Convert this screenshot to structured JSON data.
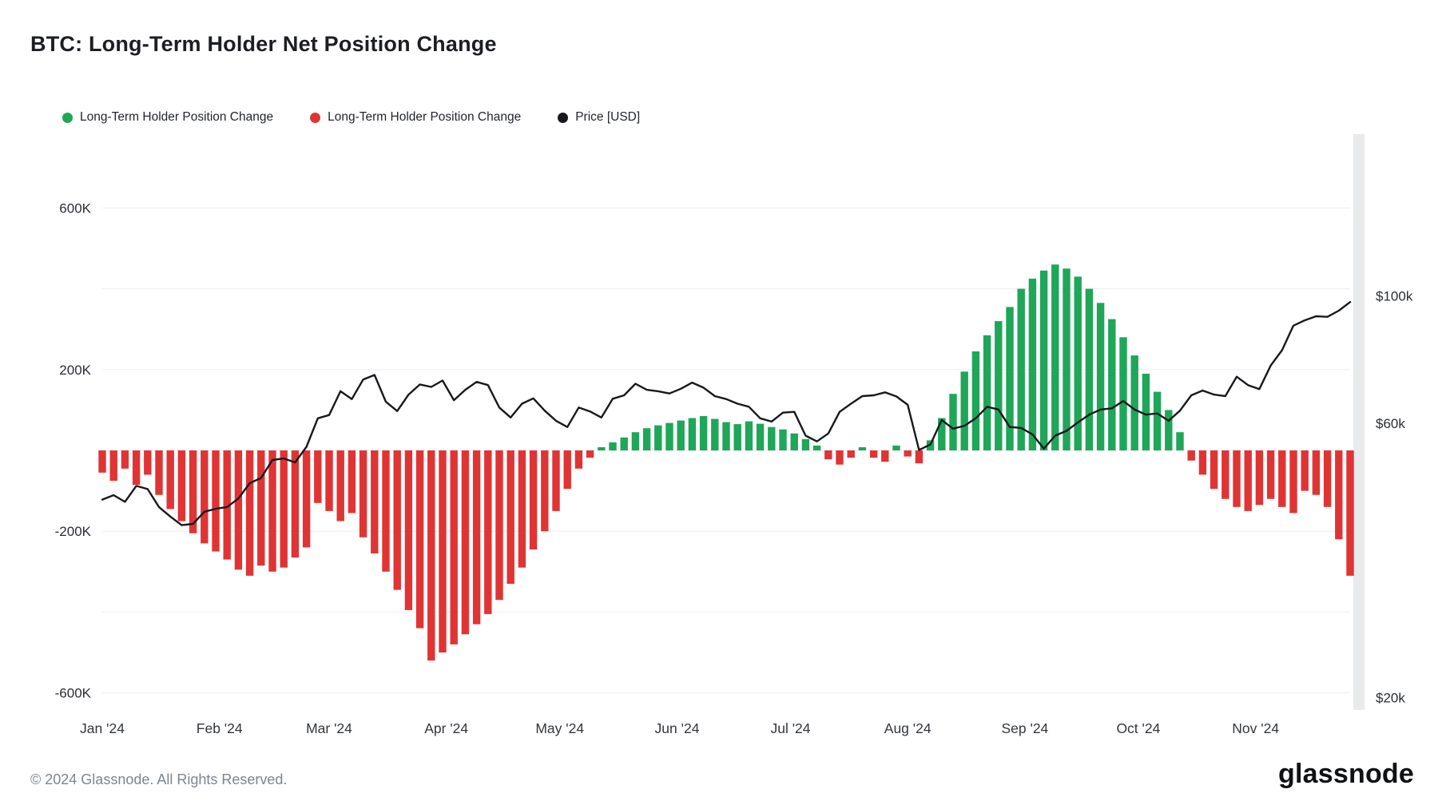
{
  "page": {
    "title": "BTC: Long-Term Holder Net Position Change",
    "footer": "© 2024 Glassnode. All Rights Reserved.",
    "brand": "glassnode"
  },
  "colors": {
    "positive": "#1fa658",
    "negative": "#e03434",
    "price": "#17191c",
    "grid": "#ededf1",
    "axis_strip": "#e9eaec",
    "axis_text": "#2a2d33",
    "muted_text": "#7e858e"
  },
  "legend": [
    {
      "label": "Long-Term Holder Position Change",
      "color_key": "positive"
    },
    {
      "label": "Long-Term Holder Position Change",
      "color_key": "negative"
    },
    {
      "label": "Price [USD]",
      "color_key": "price"
    }
  ],
  "chart_data": {
    "type": "combo-bar-line",
    "title": "BTC: Long-Term Holder Net Position Change",
    "legend_position": "top-left",
    "grid": "horizontal-only",
    "x_start_date": "2024-01-01",
    "x_interval_days": 3,
    "x_total_days": 330,
    "series": [
      {
        "name": "Long-Term Holder Position Change",
        "type": "bar",
        "axis": "left",
        "values_key": "net_position_change_k",
        "positive_color_key": "positive",
        "negative_color_key": "negative"
      },
      {
        "name": "Price [USD]",
        "type": "line",
        "axis": "right",
        "values_key": "price_usd_k",
        "color_key": "price"
      }
    ],
    "net_position_change_k": [
      -55,
      -75,
      -45,
      -85,
      -60,
      -110,
      -145,
      -175,
      -205,
      -230,
      -250,
      -270,
      -295,
      -310,
      -285,
      -300,
      -290,
      -265,
      -240,
      -130,
      -150,
      -175,
      -155,
      -215,
      -255,
      -300,
      -345,
      -395,
      -440,
      -520,
      -500,
      -480,
      -455,
      -430,
      -405,
      -370,
      -330,
      -290,
      -245,
      -200,
      -150,
      -95,
      -45,
      -18,
      8,
      20,
      32,
      45,
      55,
      62,
      68,
      74,
      80,
      85,
      78,
      70,
      65,
      72,
      66,
      58,
      52,
      42,
      28,
      12,
      -22,
      -35,
      -18,
      8,
      -18,
      -28,
      12,
      -15,
      -32,
      25,
      80,
      140,
      195,
      245,
      285,
      320,
      355,
      400,
      425,
      445,
      460,
      450,
      430,
      400,
      365,
      325,
      280,
      235,
      190,
      145,
      100,
      45,
      -25,
      -60,
      -95,
      -120,
      -140,
      -150,
      -135,
      -120,
      -140,
      -155,
      -100,
      -110,
      -140,
      -220,
      -310
    ],
    "price_usd_k": [
      44.2,
      45.0,
      43.8,
      46.7,
      46.1,
      42.9,
      41.3,
      39.9,
      40.1,
      42.1,
      42.6,
      42.9,
      44.4,
      47.2,
      48.2,
      51.8,
      52.1,
      51.3,
      54.6,
      61.2,
      62.0,
      68.2,
      66.1,
      71.5,
      72.8,
      65.4,
      63.0,
      67.3,
      70.1,
      69.4,
      71.2,
      65.8,
      68.6,
      70.8,
      69.9,
      63.9,
      61.4,
      64.9,
      66.3,
      63.1,
      60.6,
      59.1,
      63.9,
      62.9,
      61.4,
      66.2,
      67.1,
      70.3,
      68.6,
      68.2,
      67.6,
      68.9,
      70.6,
      69.2,
      66.9,
      66.1,
      64.9,
      64.1,
      61.2,
      60.4,
      62.6,
      62.8,
      57.1,
      55.8,
      57.6,
      62.8,
      64.9,
      66.9,
      67.1,
      67.9,
      66.8,
      64.6,
      53.9,
      55.1,
      60.8,
      58.7,
      59.4,
      61.2,
      64.1,
      63.4,
      59.1,
      58.9,
      57.4,
      54.2,
      57.1,
      58.2,
      60.2,
      62.1,
      63.4,
      63.7,
      65.6,
      63.4,
      62.1,
      62.4,
      60.6,
      63.1,
      67.1,
      68.4,
      67.3,
      66.9,
      72.3,
      69.9,
      68.8,
      75.6,
      80.4,
      88.7,
      90.6,
      92.1,
      91.9,
      94.2,
      97.5
    ],
    "left_axis": {
      "unit": "coins",
      "scale": "linear",
      "ticks": [
        600,
        200,
        -200,
        -600
      ],
      "tick_labels": [
        "600K",
        "200K",
        "-200K",
        "-600K"
      ],
      "grid_values": [
        600,
        400,
        200,
        0,
        -200,
        -400,
        -600
      ]
    },
    "right_axis": {
      "unit": "USD",
      "scale": "log",
      "ticks_k": [
        100,
        60,
        20
      ],
      "tick_labels": [
        "$100k",
        "$60k",
        "$20k"
      ]
    },
    "x_ticks": [
      {
        "day": 0,
        "label": "Jan '24"
      },
      {
        "day": 31,
        "label": "Feb '24"
      },
      {
        "day": 60,
        "label": "Mar '24"
      },
      {
        "day": 91,
        "label": "Apr '24"
      },
      {
        "day": 121,
        "label": "May '24"
      },
      {
        "day": 152,
        "label": "Jun '24"
      },
      {
        "day": 182,
        "label": "Jul '24"
      },
      {
        "day": 213,
        "label": "Aug '24"
      },
      {
        "day": 244,
        "label": "Sep '24"
      },
      {
        "day": 274,
        "label": "Oct '24"
      },
      {
        "day": 305,
        "label": "Nov '24"
      }
    ]
  }
}
